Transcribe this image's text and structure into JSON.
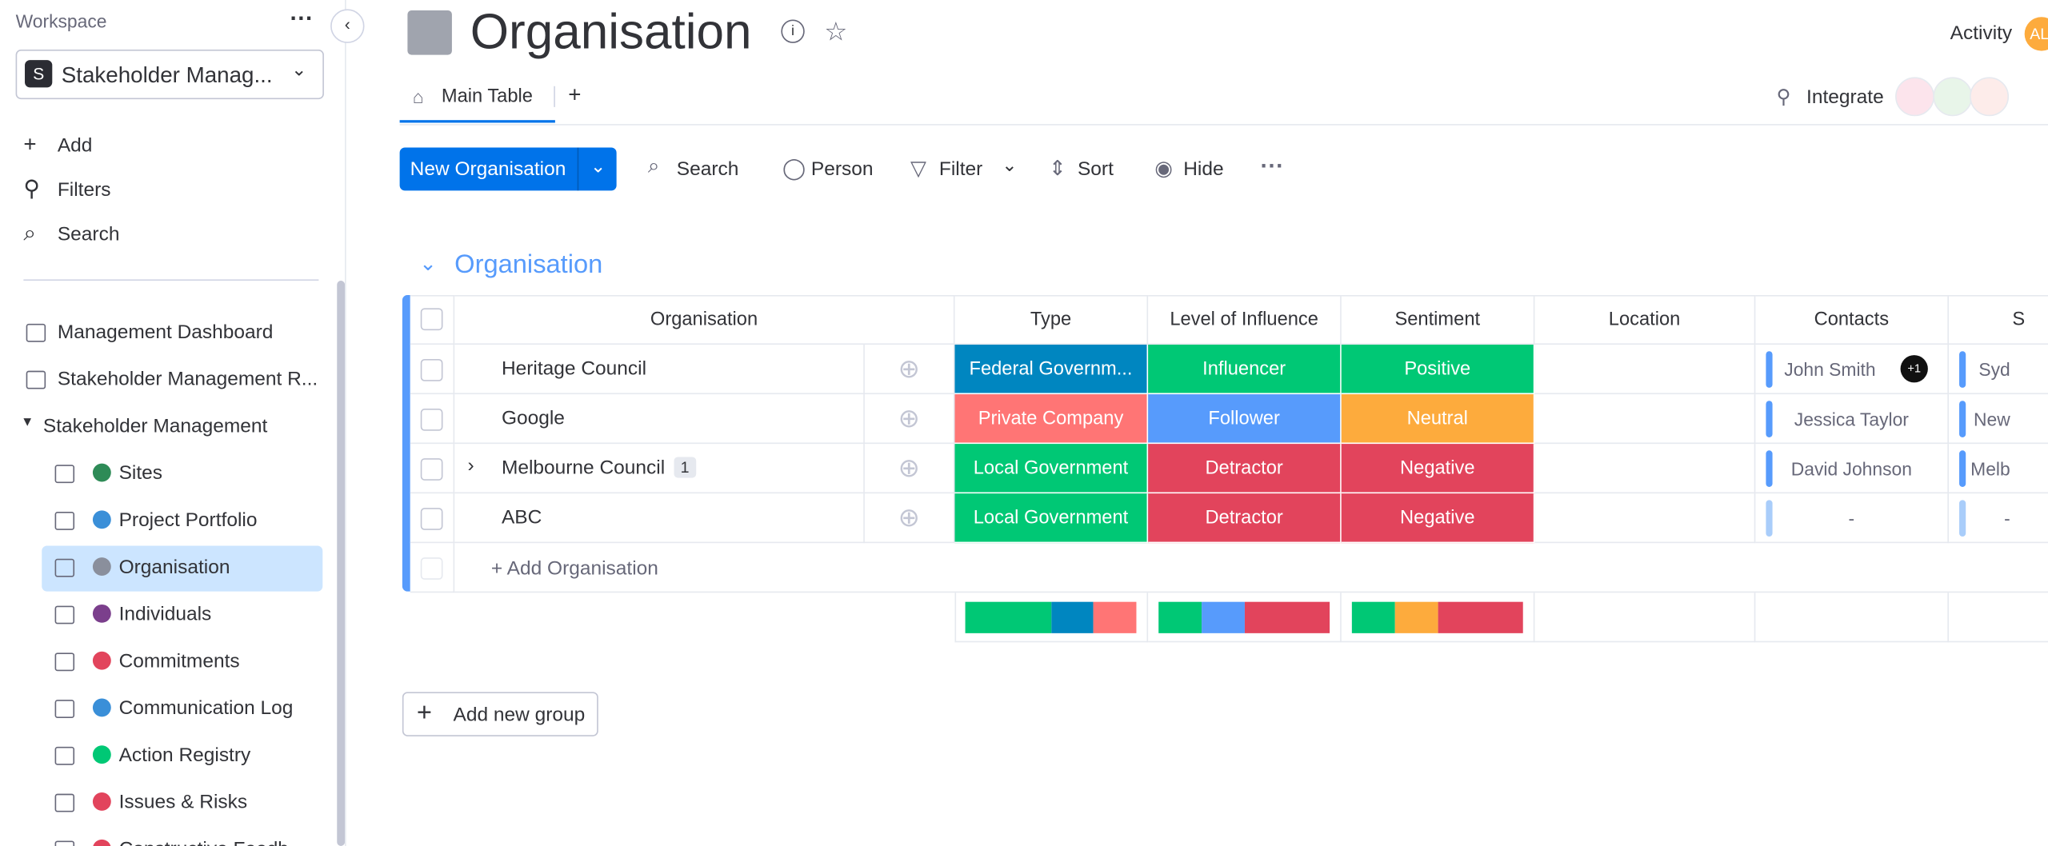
{
  "sidebar": {
    "workspace_label": "Workspace",
    "workspace_initial": "S",
    "workspace_name": "Stakeholder Manag...",
    "actions": [
      "Add",
      "Filters",
      "Search"
    ],
    "items": [
      "Management Dashboard",
      "Stakeholder Management R..."
    ],
    "folder": "Stakeholder Management",
    "children": [
      {
        "label": "Sites",
        "color": "#2e8b57"
      },
      {
        "label": "Project Portfolio",
        "color": "#3a8fd8"
      },
      {
        "label": "Organisation",
        "color": "#8a8f9c"
      },
      {
        "label": "Individuals",
        "color": "#7b3f8c"
      },
      {
        "label": "Commitments",
        "color": "#e2445c"
      },
      {
        "label": "Communication Log",
        "color": "#3a8fd8"
      },
      {
        "label": "Action Registry",
        "color": "#00c875"
      },
      {
        "label": "Issues & Risks",
        "color": "#e2445c"
      },
      {
        "label": "Constructive Feedb",
        "color": "#e2445c"
      }
    ],
    "active": "Organisation"
  },
  "header": {
    "title": "Organisation",
    "activity": "Activity",
    "avatar": "AL",
    "tabs": [
      "Main Table",
      "+"
    ],
    "integrate": "Integrate"
  },
  "toolbar": {
    "primary": "New Organisation",
    "buttons": [
      "Search",
      "Person",
      "Filter",
      "Sort",
      "Hide"
    ]
  },
  "group": {
    "title": "Organisation",
    "add_item": "+ Add Organisation",
    "add_group": "Add new group"
  },
  "table": {
    "columns": [
      "Organisation",
      "Type",
      "Level of Influence",
      "Sentiment",
      "Location",
      "Contacts",
      "S"
    ],
    "rows": [
      {
        "name": "Heritage Council",
        "type": {
          "label": "Federal Governm...",
          "color": "#0086c0"
        },
        "influence": {
          "label": "Influencer",
          "color": "#00c875"
        },
        "sentiment": {
          "label": "Positive",
          "color": "#00c875"
        },
        "contact": "John Smith",
        "extra": "+1",
        "site": "Syd"
      },
      {
        "name": "Google",
        "type": {
          "label": "Private Company",
          "color": "#ff7575"
        },
        "influence": {
          "label": "Follower",
          "color": "#579bfc"
        },
        "sentiment": {
          "label": "Neutral",
          "color": "#fdab3d"
        },
        "contact": "Jessica Taylor",
        "site": "New"
      },
      {
        "name": "Melbourne Council",
        "subitems": "1",
        "type": {
          "label": "Local Government",
          "color": "#00c875"
        },
        "influence": {
          "label": "Detractor",
          "color": "#e2445c"
        },
        "sentiment": {
          "label": "Negative",
          "color": "#e2445c"
        },
        "contact": "David Johnson",
        "site": "Melb"
      },
      {
        "name": "ABC",
        "type": {
          "label": "Local Government",
          "color": "#00c875"
        },
        "influence": {
          "label": "Detractor",
          "color": "#e2445c"
        },
        "sentiment": {
          "label": "Negative",
          "color": "#e2445c"
        },
        "contact": "-",
        "site": "-"
      }
    ],
    "summary": {
      "type": [
        {
          "color": "#00c875",
          "count": 2
        },
        {
          "color": "#0086c0",
          "count": 1
        },
        {
          "color": "#ff7575",
          "count": 1
        }
      ],
      "influence": [
        {
          "color": "#00c875",
          "count": 1
        },
        {
          "color": "#579bfc",
          "count": 1
        },
        {
          "color": "#e2445c",
          "count": 2
        }
      ],
      "sentiment": [
        {
          "color": "#00c875",
          "count": 1
        },
        {
          "color": "#fdab3d",
          "count": 1
        },
        {
          "color": "#e2445c",
          "count": 2
        }
      ]
    }
  }
}
